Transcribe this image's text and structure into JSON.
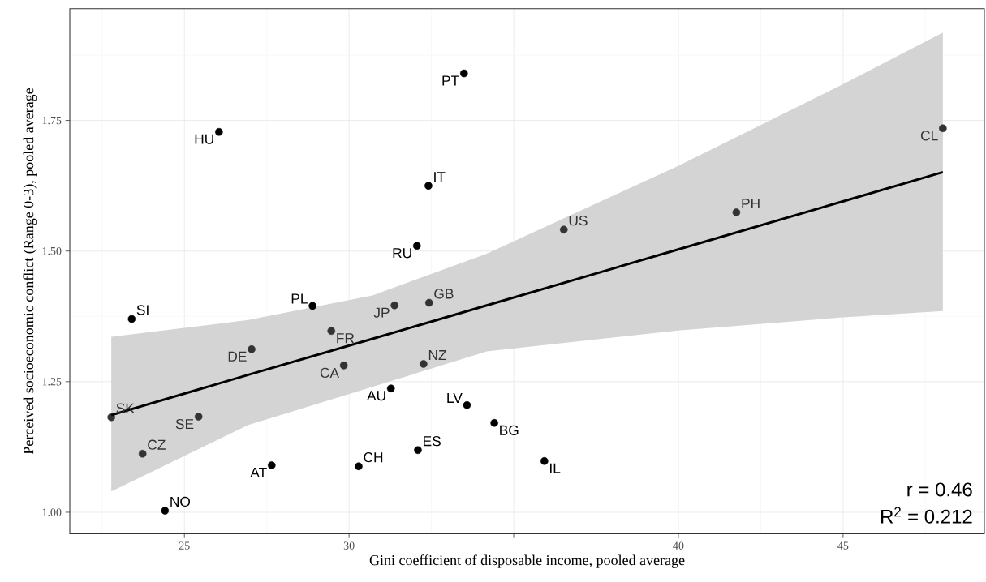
{
  "chart_data": {
    "type": "scatter",
    "xlabel": "Gini coefficient of disposable income, pooled average",
    "ylabel": "Perceived socioeconomic conflict (Range 0-3), pooled average",
    "xlim": [
      21.52,
      49.29
    ],
    "ylim": [
      0.959,
      1.964
    ],
    "xticks": [
      25,
      30,
      {
        "value": 35,
        "label": null
      },
      40,
      45
    ],
    "yticks": [
      {
        "value": 1,
        "label": "1.00"
      },
      {
        "value": 1.25,
        "label": "1.25"
      },
      {
        "value": 1.5,
        "label": "1.50"
      },
      {
        "value": 1.75,
        "label": "1.75"
      }
    ],
    "grid": true,
    "series": [
      {
        "marker": "circle",
        "x": [
          33.49,
          26.05,
          48.03,
          32.41,
          41.76,
          36.52,
          32.06,
          28.89,
          31.38,
          32.43,
          23.4,
          29.46,
          27.04,
          29.84,
          32.26,
          31.27,
          33.58,
          22.78,
          25.43,
          34.41,
          32.09,
          23.73,
          35.93,
          27.65,
          30.29,
          24.41
        ],
        "values": [
          1.84,
          1.728,
          1.735,
          1.625,
          1.574,
          1.541,
          1.51,
          1.395,
          1.396,
          1.401,
          1.37,
          1.347,
          1.312,
          1.281,
          1.284,
          1.237,
          1.205,
          1.182,
          1.183,
          1.171,
          1.119,
          1.112,
          1.098,
          1.09,
          1.088,
          1.003
        ],
        "colors": [
          "#000000",
          "#000000",
          "#333333",
          "#000000",
          "#333333",
          "#333333",
          "#000000",
          "#000000",
          "#333333",
          "#333333",
          "#000000",
          "#333333",
          "#333333",
          "#333333",
          "#333333",
          "#000000",
          "#000000",
          "#333333",
          "#333333",
          "#000000",
          "#000000",
          "#333333",
          "#000000",
          "#000000",
          "#000000",
          "#000000"
        ]
      },
      {
        "type": "line",
        "color": "#000000",
        "line_style": "solid",
        "x": [
          22.78,
          26.94,
          30.71,
          34.18,
          39.99,
          44.99,
          48.03
        ],
        "values": [
          1.186,
          1.263,
          1.332,
          1.396,
          1.503,
          1.595,
          1.651
        ],
        "lower": [
          1.04,
          1.167,
          1.24,
          1.308,
          1.348,
          1.373,
          1.385
        ],
        "upper": [
          1.336,
          1.368,
          1.415,
          1.495,
          1.663,
          1.819,
          1.918
        ]
      }
    ],
    "annotations": [
      {
        "text": "PT",
        "x": 33.49,
        "y": 1.84
      },
      {
        "text": "HU",
        "x": 26.05,
        "y": 1.728
      },
      {
        "text": "CL",
        "x": 48.03,
        "y": 1.735
      },
      {
        "text": "IT",
        "x": 32.41,
        "y": 1.625
      },
      {
        "text": "PH",
        "x": 41.76,
        "y": 1.574
      },
      {
        "text": "US",
        "x": 36.52,
        "y": 1.541
      },
      {
        "text": "RU",
        "x": 32.06,
        "y": 1.51
      },
      {
        "text": "PL",
        "x": 28.89,
        "y": 1.395
      },
      {
        "text": "JP",
        "x": 31.38,
        "y": 1.396
      },
      {
        "text": "GB",
        "x": 32.43,
        "y": 1.401
      },
      {
        "text": "SI",
        "x": 23.4,
        "y": 1.37
      },
      {
        "text": "FR",
        "x": 29.46,
        "y": 1.347
      },
      {
        "text": "DE",
        "x": 27.04,
        "y": 1.312
      },
      {
        "text": "CA",
        "x": 29.84,
        "y": 1.281
      },
      {
        "text": "NZ",
        "x": 32.26,
        "y": 1.284
      },
      {
        "text": "AU",
        "x": 31.27,
        "y": 1.237
      },
      {
        "text": "LV",
        "x": 33.58,
        "y": 1.205
      },
      {
        "text": "SK",
        "x": 22.78,
        "y": 1.182
      },
      {
        "text": "SE",
        "x": 25.43,
        "y": 1.183
      },
      {
        "text": "BG",
        "x": 34.41,
        "y": 1.171
      },
      {
        "text": "ES",
        "x": 32.09,
        "y": 1.119
      },
      {
        "text": "CZ",
        "x": 23.73,
        "y": 1.112
      },
      {
        "text": "IL",
        "x": 35.93,
        "y": 1.098
      },
      {
        "text": "AT",
        "x": 27.65,
        "y": 1.09
      },
      {
        "text": "CH",
        "x": 30.29,
        "y": 1.088
      },
      {
        "text": "NO",
        "x": 24.41,
        "y": 1.003
      },
      "r = 0.46",
      "R$^{2}$ = 0.212"
    ]
  }
}
